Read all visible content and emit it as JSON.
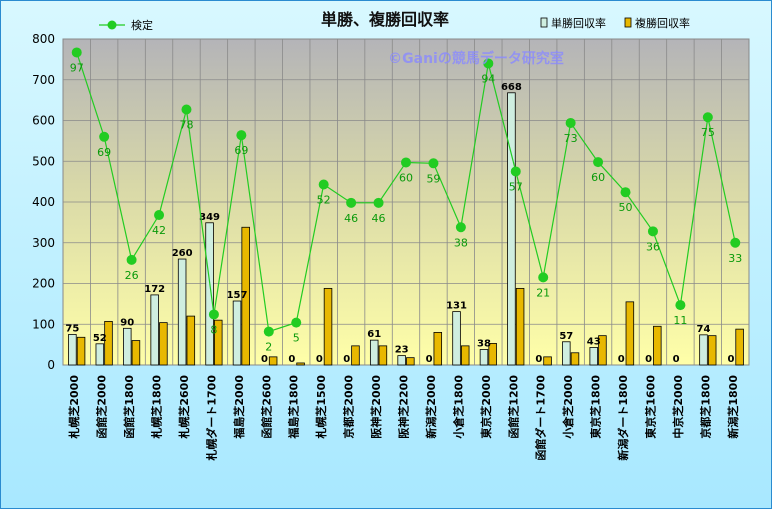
{
  "chart_data": {
    "type": "bar",
    "title": "単勝、複勝回収率",
    "watermark": "©Ganiの競馬データ研究室",
    "categories": [
      "札幌芝2000",
      "函館芝2000",
      "函館芝1800",
      "札幌芝1800",
      "札幌芝2600",
      "札幌ダート1700",
      "福島芝2000",
      "函館芝2600",
      "福島芝1800",
      "札幌芝1500",
      "京都芝2000",
      "阪神芝2000",
      "阪神芝2200",
      "新潟芝2000",
      "小倉芝1800",
      "東京芝2000",
      "函館芝1200",
      "函館ダート1700",
      "小倉芝2000",
      "東京芝1800",
      "新潟ダート1800",
      "東京芝1600",
      "中京芝2000",
      "京都芝1800",
      "新潟芝1800"
    ],
    "ylim": [
      0,
      800
    ],
    "yticks": [
      0,
      100,
      200,
      300,
      400,
      500,
      600,
      700,
      800
    ],
    "grid": true,
    "legend_position": "top",
    "series": [
      {
        "name": "単勝回収率",
        "kind": "bar",
        "color": "#cfeee0",
        "values": [
          75,
          52,
          90,
          172,
          260,
          349,
          157,
          0,
          0,
          0,
          0,
          61,
          23,
          0,
          131,
          38,
          668,
          0,
          57,
          43,
          0,
          0,
          0,
          74,
          0
        ],
        "labels": [
          "75",
          "52",
          "90",
          "172",
          "260",
          "349",
          "157",
          "0",
          "0",
          "0",
          "0",
          "61",
          "23",
          "0",
          "131",
          "38",
          "668",
          "0",
          "57",
          "43",
          "0",
          "0",
          "0",
          "74",
          "0"
        ]
      },
      {
        "name": "複勝回収率",
        "kind": "bar",
        "color": "#e8b800",
        "values": [
          68,
          107,
          60,
          104,
          120,
          110,
          338,
          20,
          5,
          188,
          47,
          47,
          18,
          80,
          47,
          53,
          188,
          20,
          30,
          72,
          155,
          95,
          0,
          72,
          88
        ]
      },
      {
        "name": "検定",
        "kind": "line",
        "color": "#22cc22",
        "values": [
          767,
          560,
          258,
          368,
          627,
          124,
          564,
          82,
          104,
          443,
          398,
          398,
          497,
          495,
          338,
          740,
          475,
          215,
          594,
          498,
          424,
          328,
          147,
          608,
          300
        ],
        "labels": [
          "97",
          "69",
          "26",
          "42",
          "78",
          "8",
          "69",
          "2",
          "5",
          "52",
          "46",
          "46",
          "60",
          "59",
          "38",
          "94",
          "57",
          "21",
          "73",
          "60",
          "50",
          "36",
          "11",
          "75",
          "33"
        ]
      }
    ]
  }
}
